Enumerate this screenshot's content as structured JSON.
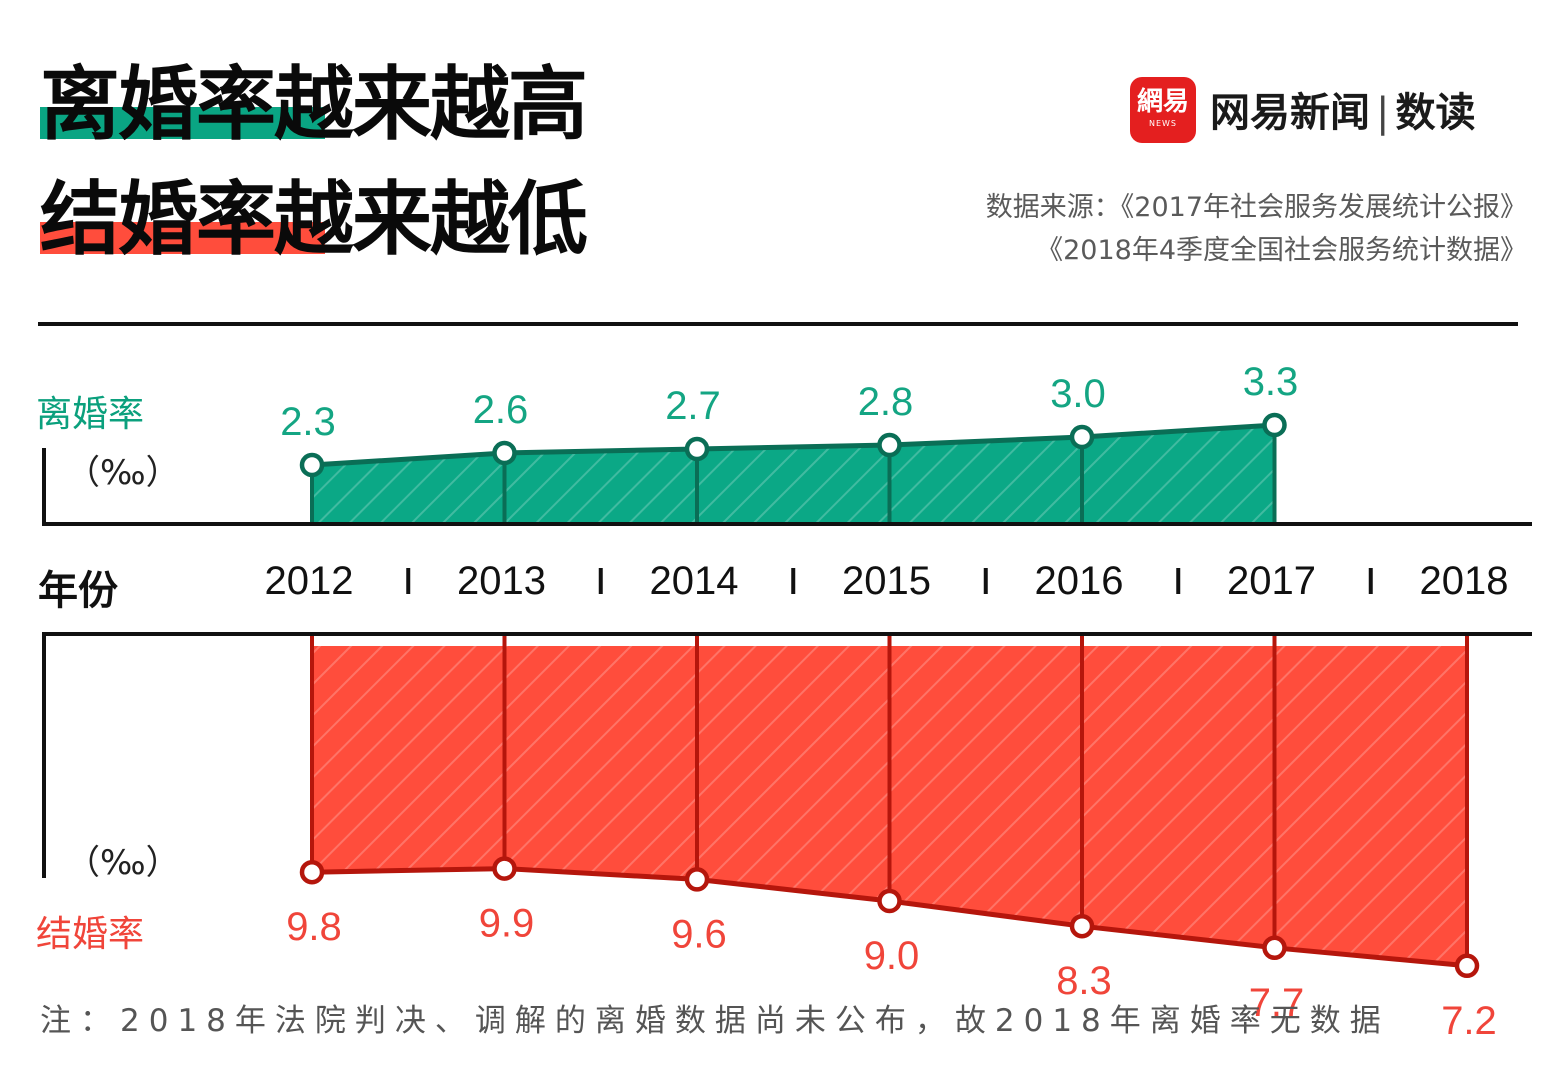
{
  "title": {
    "line1": "离婚率越来越高",
    "line2": "结婚率越来越低",
    "line1_highlight_color": "#0aa583",
    "line2_highlight_color": "#ff4d3c"
  },
  "brand": {
    "logo_text": "網易",
    "logo_sub": "NEWS",
    "name": "网易新闻",
    "separator": "|",
    "section": "数读"
  },
  "source": {
    "line1": "数据来源：《2017年社会服务发展统计公报》",
    "line2": "《2018年4季度全国社会服务统计数据》"
  },
  "axis": {
    "divorce_label": "离婚率",
    "marriage_label": "结婚率",
    "unit": "（‰）",
    "year_label": "年份"
  },
  "note": "注：2018年法院判决、调解的离婚数据尚未公布，故2018年离婚率无数据",
  "chart_data": [
    {
      "type": "area",
      "ylabel": "离婚率",
      "unit": "‰",
      "x": [
        "2012",
        "2013",
        "2014",
        "2015",
        "2016",
        "2017"
      ],
      "values": [
        2.3,
        2.6,
        2.7,
        2.8,
        3.0,
        3.3
      ],
      "labels": [
        "2.3",
        "2.6",
        "2.7",
        "2.8",
        "3.0",
        "3.3"
      ],
      "color": "#0ba886"
    },
    {
      "type": "area",
      "ylabel": "结婚率",
      "unit": "‰",
      "x": [
        "2012",
        "2013",
        "2014",
        "2015",
        "2016",
        "2017",
        "2018"
      ],
      "values": [
        9.8,
        9.9,
        9.6,
        9.0,
        8.3,
        7.7,
        7.2
      ],
      "labels": [
        "9.8",
        "9.9",
        "9.6",
        "9.0",
        "8.3",
        "7.7",
        "7.2"
      ],
      "color": "#ff4d3c"
    }
  ],
  "years": [
    "2012",
    "2013",
    "2014",
    "2015",
    "2016",
    "2017",
    "2018"
  ]
}
